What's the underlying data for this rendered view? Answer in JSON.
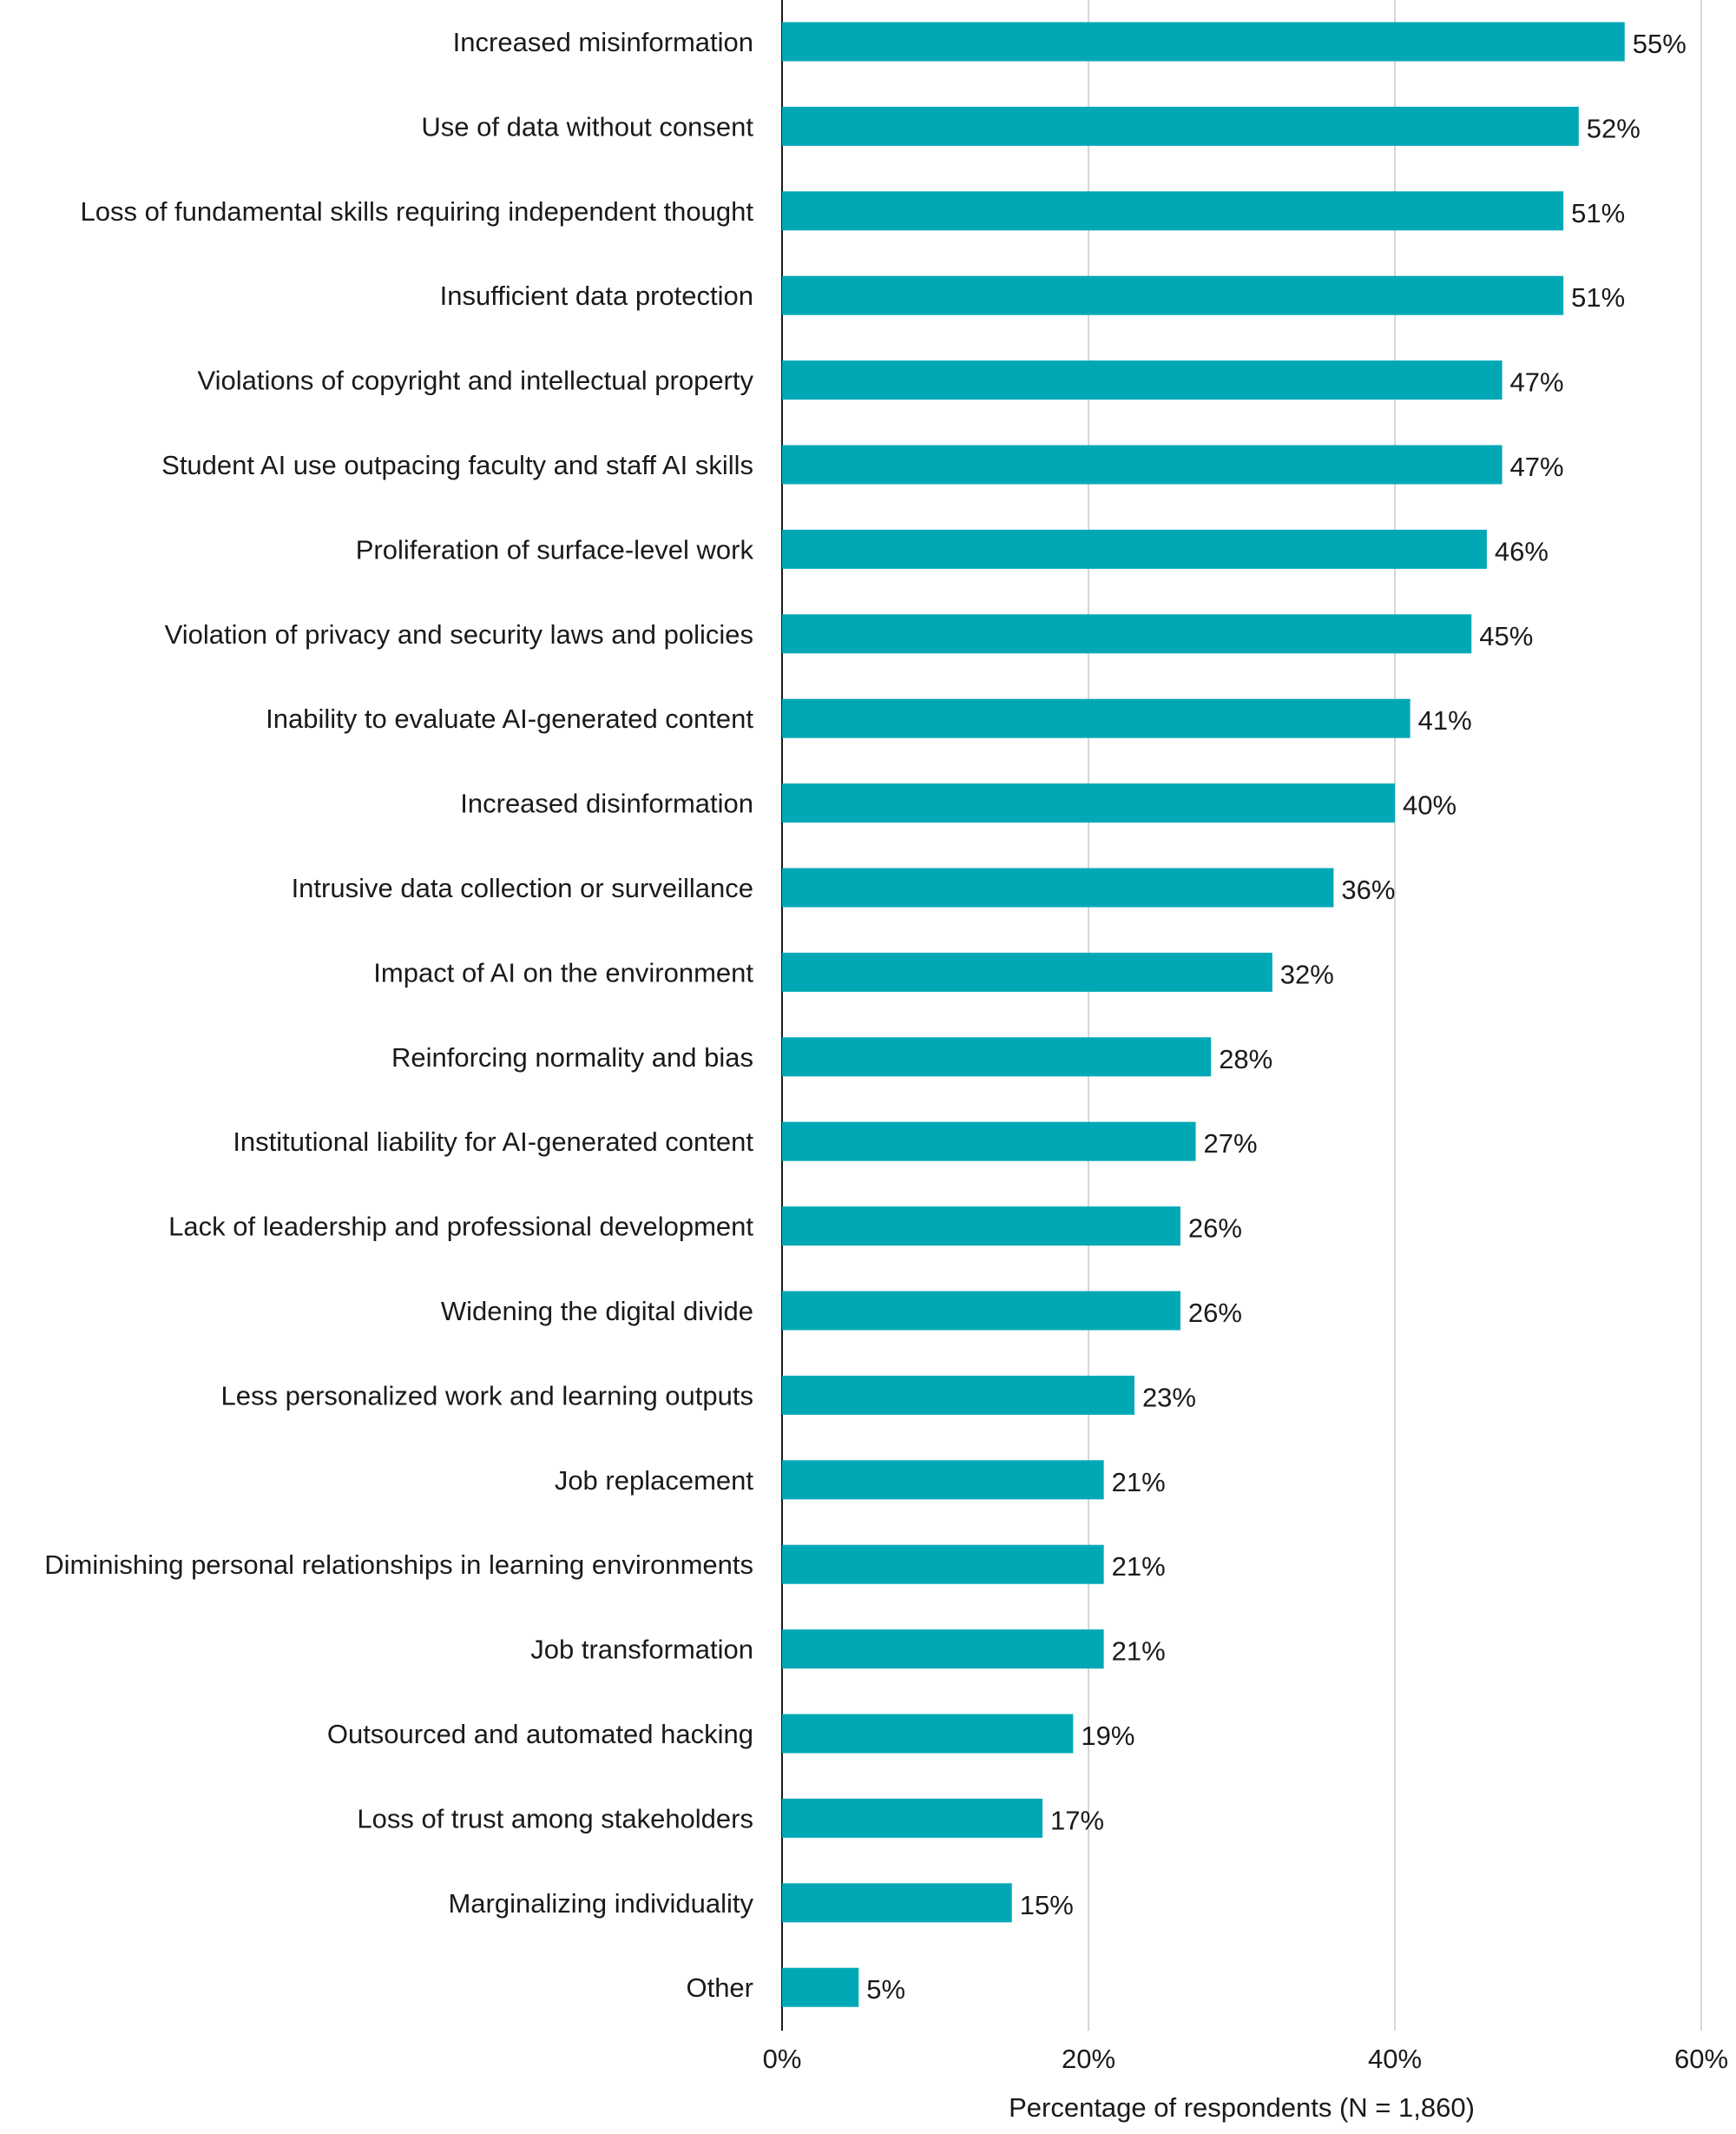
{
  "chart_data": {
    "type": "bar",
    "orientation": "horizontal",
    "categories": [
      "Increased misinformation",
      "Use of data without consent",
      "Loss of fundamental skills requiring independent thought",
      "Insufficient data protection",
      "Violations of copyright and intellectual property",
      "Student AI use outpacing faculty and staff AI skills",
      "Proliferation of surface-level work",
      "Violation of privacy and security laws and policies",
      "Inability to evaluate AI-generated content",
      "Increased disinformation",
      "Intrusive data collection or surveillance",
      "Impact of AI on the environment",
      "Reinforcing normality and bias",
      "Institutional liability for AI-generated content",
      "Lack of leadership and professional development",
      "Widening the digital divide",
      "Less personalized work and learning outputs",
      "Job replacement",
      "Diminishing personal relationships in learning environments",
      "Job transformation",
      "Outsourced and automated hacking",
      "Loss of trust among stakeholders",
      "Marginalizing individuality",
      "Other"
    ],
    "values": [
      55,
      52,
      51,
      51,
      47,
      47,
      46,
      45,
      41,
      40,
      36,
      32,
      28,
      27,
      26,
      26,
      23,
      21,
      21,
      21,
      19,
      17,
      15,
      5
    ],
    "value_labels": [
      "55%",
      "52%",
      "51%",
      "51%",
      "47%",
      "47%",
      "46%",
      "45%",
      "41%",
      "40%",
      "36%",
      "32%",
      "28%",
      "27%",
      "26%",
      "26%",
      "23%",
      "21%",
      "21%",
      "21%",
      "19%",
      "17%",
      "15%",
      "5%"
    ],
    "xlim": [
      0,
      60
    ],
    "xticks": [
      0,
      20,
      40,
      60
    ],
    "xtick_labels": [
      "0%",
      "20%",
      "40%",
      "60%"
    ],
    "xlabel": "Percentage of respondents (N = 1,860)",
    "ylabel": "",
    "title": "",
    "grid": true,
    "bar_color": "#00a8b5",
    "legend": "none"
  }
}
